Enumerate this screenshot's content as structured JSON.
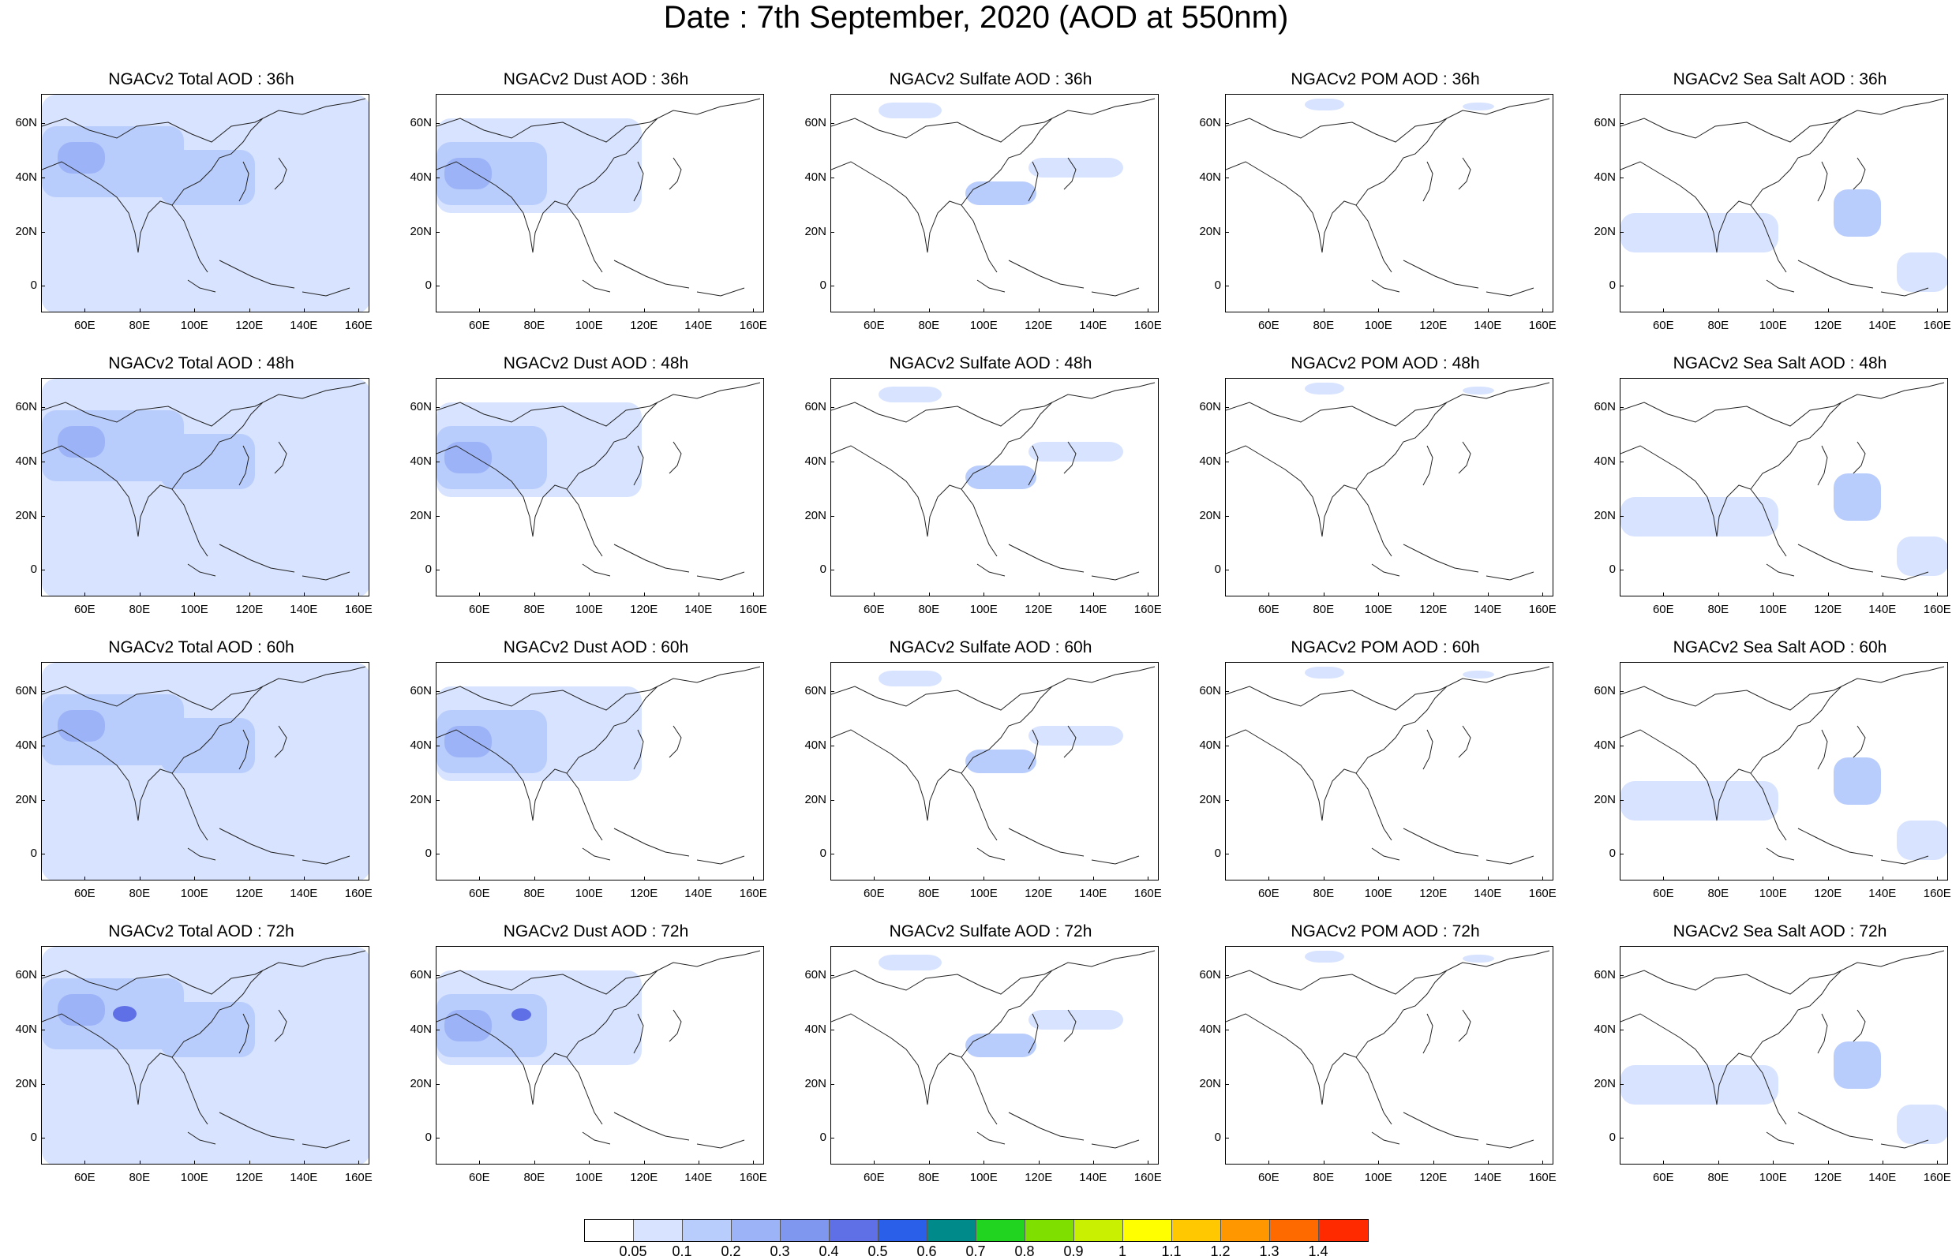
{
  "title": "Date : 7th September, 2020 (AOD at 550nm)",
  "panel_titles": [
    [
      "NGACv2 Total AOD : 36h",
      "NGACv2 Dust AOD : 36h",
      "NGACv2 Sulfate AOD : 36h",
      "NGACv2 POM AOD : 36h",
      "NGACv2 Sea Salt AOD : 36h"
    ],
    [
      "NGACv2 Total AOD : 48h",
      "NGACv2 Dust AOD : 48h",
      "NGACv2 Sulfate AOD : 48h",
      "NGACv2 POM AOD : 48h",
      "NGACv2 Sea Salt AOD : 48h"
    ],
    [
      "NGACv2 Total AOD : 60h",
      "NGACv2 Dust AOD : 60h",
      "NGACv2 Sulfate AOD : 60h",
      "NGACv2 POM AOD : 60h",
      "NGACv2 Sea Salt AOD : 60h"
    ],
    [
      "NGACv2 Total AOD : 72h",
      "NGACv2 Dust AOD : 72h",
      "NGACv2 Sulfate AOD : 72h",
      "NGACv2 POM AOD : 72h",
      "NGACv2 Sea Salt  AOD : 72h"
    ]
  ],
  "y_ticks": [
    "60N",
    "40N",
    "20N",
    "0"
  ],
  "x_ticks": [
    "60E",
    "80E",
    "100E",
    "120E",
    "140E",
    "160E"
  ],
  "colorbar": {
    "labels": [
      "0.05",
      "0.1",
      "0.2",
      "0.3",
      "0.4",
      "0.5",
      "0.6",
      "0.7",
      "0.8",
      "0.9",
      "1",
      "1.1",
      "1.2",
      "1.3",
      "1.4"
    ],
    "colors": [
      "#ffffff",
      "#d7e3ff",
      "#b9cdfc",
      "#9cb4f7",
      "#7f97ef",
      "#5f70e6",
      "#2a5fe9",
      "#008a8a",
      "#20d420",
      "#7fe000",
      "#c9f000",
      "#ffff00",
      "#ffc800",
      "#ff9800",
      "#ff6a00",
      "#ff2a00"
    ]
  }
}
